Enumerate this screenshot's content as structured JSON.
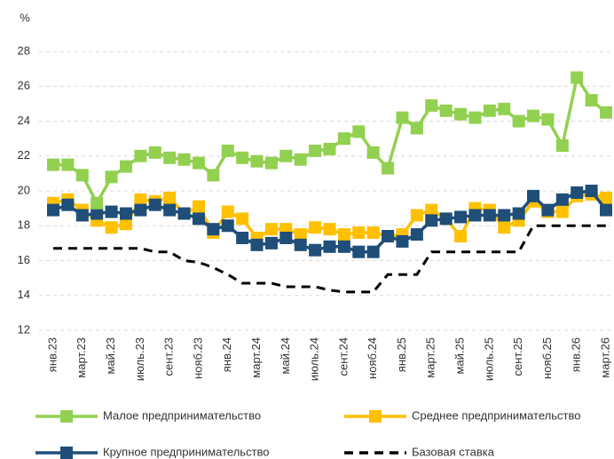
{
  "chart_data": {
    "type": "line",
    "y_label": "%",
    "ylim": [
      12,
      28
    ],
    "yticks": [
      12,
      14,
      16,
      18,
      20,
      22,
      24,
      26,
      28
    ],
    "grid": true,
    "legend": "bottom",
    "categories": [
      "янв.23",
      null,
      "март.23",
      null,
      "май.23",
      null,
      "июль.23",
      null,
      "сент.23",
      null,
      "нояб.23",
      null,
      "янв.24",
      null,
      "март.24",
      null,
      "май.24",
      null,
      "июль.24",
      null,
      "сент.24",
      null,
      "нояб.24",
      null,
      "янв.25",
      null,
      "март.25",
      null,
      "май.25",
      null,
      "июль.25",
      null,
      "сент.25",
      null,
      "нояб.25",
      null,
      "янв.26",
      null,
      "март.26"
    ],
    "series": [
      {
        "name": "Малое предпринимательство",
        "color": "#92d050",
        "marker": true,
        "dashed": false,
        "values": [
          21.5,
          21.5,
          20.9,
          19.3,
          20.8,
          21.4,
          22.0,
          22.2,
          21.9,
          21.8,
          21.6,
          20.9,
          22.3,
          21.9,
          21.7,
          21.6,
          22.0,
          21.8,
          22.3,
          22.4,
          23.0,
          23.4,
          22.2,
          21.3,
          24.2,
          23.6,
          24.9,
          24.6,
          24.4,
          24.2,
          24.6,
          24.7,
          24.0,
          24.3,
          24.1,
          22.6,
          26.5,
          25.2,
          24.5
        ]
      },
      {
        "name": "Среднее предпринимательство",
        "color": "#ffc000",
        "marker": true,
        "dashed": false,
        "values": [
          19.3,
          19.5,
          18.9,
          18.3,
          17.9,
          18.1,
          19.5,
          19.4,
          19.6,
          18.7,
          19.1,
          17.6,
          18.8,
          18.4,
          17.3,
          17.8,
          17.8,
          17.5,
          17.9,
          17.8,
          17.5,
          17.6,
          17.6,
          17.4,
          17.5,
          18.6,
          18.9,
          18.4,
          17.4,
          19.0,
          18.9,
          17.9,
          18.3,
          19.4,
          18.8,
          18.8,
          19.7,
          19.8,
          19.6
        ]
      },
      {
        "name": "Крупное предпринимательство",
        "color": "#1f4e79",
        "marker": true,
        "dashed": false,
        "values": [
          18.9,
          19.2,
          18.6,
          18.7,
          18.8,
          18.7,
          18.9,
          19.2,
          18.9,
          18.7,
          18.4,
          17.8,
          18.0,
          17.3,
          16.9,
          17.0,
          17.3,
          16.9,
          16.6,
          16.8,
          16.8,
          16.5,
          16.5,
          17.4,
          17.1,
          17.5,
          18.3,
          18.4,
          18.5,
          18.6,
          18.6,
          18.6,
          18.7,
          19.7,
          18.9,
          19.5,
          19.9,
          20.0,
          18.9
        ]
      },
      {
        "name": "Базовая ставка",
        "color": "#000000",
        "marker": false,
        "dashed": true,
        "values": [
          16.7,
          16.7,
          16.7,
          16.7,
          16.7,
          16.7,
          16.7,
          16.5,
          16.5,
          16.0,
          15.9,
          15.6,
          15.2,
          14.7,
          14.7,
          14.7,
          14.5,
          14.5,
          14.5,
          14.3,
          14.2,
          14.2,
          14.2,
          15.2,
          15.2,
          15.2,
          16.5,
          16.5,
          16.5,
          16.5,
          16.5,
          16.5,
          16.5,
          18.0,
          18.0,
          18.0,
          18.0,
          18.0,
          18.0
        ]
      }
    ]
  }
}
